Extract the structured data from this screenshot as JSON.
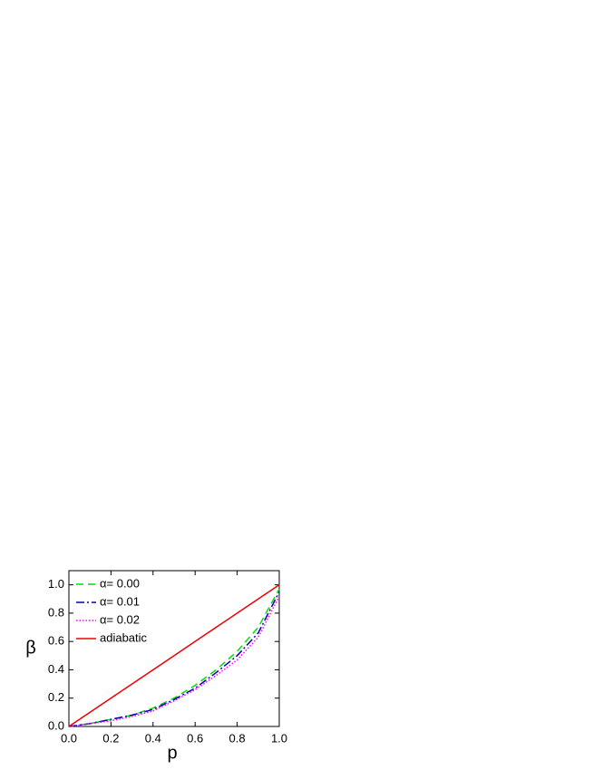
{
  "chart_data": {
    "type": "line",
    "x_label": "p",
    "y_label": "β",
    "x": [
      0,
      0.1,
      0.2,
      0.3,
      0.4,
      0.5,
      0.6,
      0.7,
      0.8,
      0.9,
      1.0
    ],
    "series": [
      {
        "name": "α= 0.00",
        "color": "#00dd00",
        "dash": "8,5",
        "values": [
          0,
          0.02,
          0.05,
          0.08,
          0.13,
          0.2,
          0.29,
          0.4,
          0.53,
          0.7,
          0.97
        ]
      },
      {
        "name": "α= 0.01",
        "color": "#0000bb",
        "dash": "9,3,2,3",
        "values": [
          0,
          0.02,
          0.05,
          0.08,
          0.12,
          0.19,
          0.27,
          0.38,
          0.5,
          0.66,
          0.95
        ]
      },
      {
        "name": "α= 0.02",
        "color": "#ff00ff",
        "dash": "1.5,2",
        "values": [
          0,
          0.02,
          0.04,
          0.07,
          0.11,
          0.18,
          0.26,
          0.36,
          0.47,
          0.63,
          0.92
        ]
      },
      {
        "name": "adiabatic",
        "color": "#ee0000",
        "dash": "none",
        "values": [
          0,
          0.1,
          0.2,
          0.3,
          0.4,
          0.5,
          0.6,
          0.7,
          0.8,
          0.9,
          1.0
        ]
      }
    ],
    "xlim": [
      0,
      1.0
    ],
    "ylim": [
      0,
      1.1
    ],
    "xticks": [
      {
        "value": 0,
        "label": "0.0"
      },
      0.2,
      0.4,
      0.6,
      0.8,
      {
        "value": 1.0,
        "label": "1.0"
      }
    ],
    "yticks": [
      {
        "value": 0,
        "label": "0.0"
      },
      0.2,
      0.4,
      0.6,
      0.8,
      {
        "value": 1.0,
        "label": "1.0"
      }
    ],
    "legend": "upper left"
  }
}
